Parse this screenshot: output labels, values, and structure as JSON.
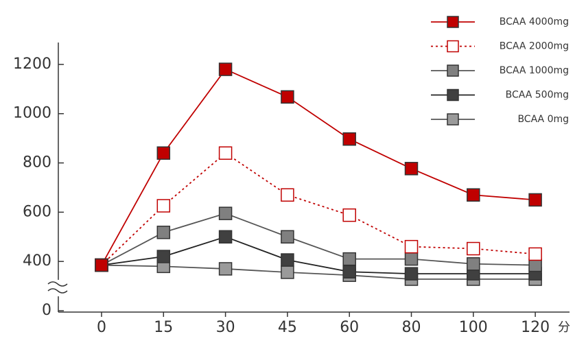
{
  "chart_data": {
    "type": "line",
    "categories": [
      "0",
      "15",
      "30",
      "45",
      "60",
      "80",
      "100",
      "120"
    ],
    "x_label": "分",
    "ylim": [
      0,
      1300
    ],
    "y_break": [
      0,
      200
    ],
    "yticks": [
      0,
      400,
      600,
      800,
      1000,
      1200
    ],
    "legend": "top-right",
    "series": [
      {
        "name": "BCAA 4000mg",
        "color": "#c00000",
        "marker_fill": "#c00000",
        "dash": false,
        "values": [
          385,
          840,
          1180,
          1068,
          897,
          777,
          670,
          650
        ]
      },
      {
        "name": "BCAA 2000mg",
        "color": "#c00000",
        "marker_fill": "#ffffff",
        "dash": true,
        "values": [
          385,
          626,
          840,
          670,
          588,
          460,
          452,
          430
        ]
      },
      {
        "name": "BCAA 1000mg",
        "color": "#555555",
        "marker_fill": "#808080",
        "dash": false,
        "values": [
          385,
          518,
          595,
          500,
          410,
          410,
          390,
          385
        ]
      },
      {
        "name": "BCAA 500mg",
        "color": "#222222",
        "marker_fill": "#404040",
        "dash": false,
        "values": [
          385,
          420,
          500,
          406,
          358,
          350,
          350,
          350
        ]
      },
      {
        "name": "BCAA 0mg",
        "color": "#555555",
        "marker_fill": "#9a9a9a",
        "dash": false,
        "values": [
          385,
          380,
          370,
          356,
          344,
          328,
          328,
          328
        ]
      }
    ]
  }
}
